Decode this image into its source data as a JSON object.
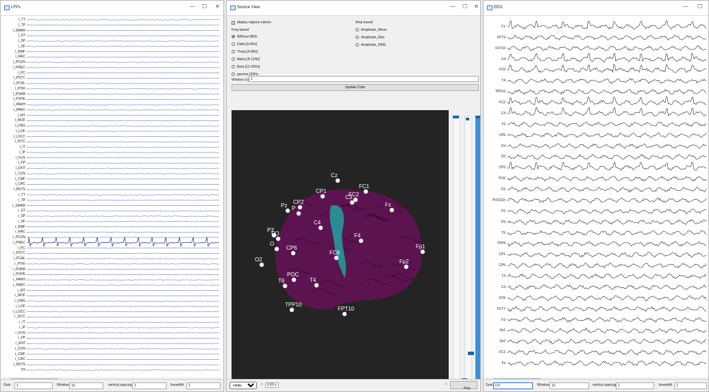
{
  "lfp_window": {
    "title": "LFPs",
    "channels": [
      "l_TT",
      "l_TP",
      "l_SMAR",
      "l_ST",
      "l_SP",
      "l_SF",
      "l_RMF",
      "l_RAC",
      "l_PCUN",
      "l_PREC",
      "l_PC",
      "l_PSTC",
      "l_PCAL",
      "l_PTRI",
      "l_PORB",
      "l_POPE",
      "l_PARH",
      "l_PARC",
      "l_MT",
      "l_MOF",
      "l_LING",
      "l_LOF",
      "l_LOCC",
      "l_ISTC",
      "l_IT",
      "l_IP",
      "l_FUS",
      "l_FP",
      "l_ENT",
      "l_CUN",
      "l_CMF",
      "l_CAC",
      "l_BSTS",
      "r_TT",
      "r_TP",
      "r_SMAR",
      "r_ST",
      "r_SP",
      "r_SF",
      "r_RMF",
      "r_RAC",
      "r_PCUN",
      "r_PREC",
      "r_PC",
      "r_PSTC",
      "r_PCAL",
      "r_PTRI",
      "r_PORB",
      "r_POPE",
      "r_PARH",
      "r_PARC",
      "r_MT",
      "r_MOF",
      "r_LING",
      "r_LOF",
      "r_LOCC",
      "r_ISTC",
      "r_IT",
      "r_IP",
      "r_FUS",
      "r_FP",
      "r_ENT",
      "r_CUN",
      "r_CMF",
      "r_CAC",
      "r_BSTS",
      "TH"
    ],
    "active_channel": "r_PREC",
    "trace_color": "#4a5fa8",
    "active_color": "#2c3e90",
    "controls": {
      "gain_label": "Gain",
      "gain_value": "1",
      "window_label": "Window",
      "window_value": "10",
      "spacing_label": "vertical spacing",
      "spacing_value": "1",
      "linewidth_label": "linewidth",
      "linewidth_value": "1"
    }
  },
  "source_window": {
    "title": "Source View",
    "display_names_label": "display regions names",
    "freq_heading": "Freq based",
    "freq_options": [
      "Without filtHz",
      "Delta [0-4Hz]",
      "Theta [4-8Hz]",
      "Alpha [8-12Hz]",
      "Beta [12-30Hz]",
      "gamma [30Hz"
    ],
    "amp_heading": "Amp based",
    "amp_options": [
      "Amplitude_Mean",
      "Amplitude_Max",
      "Amplitude_RMS"
    ],
    "window_label": "Window (s)",
    "window_value": "1",
    "update_button": "Update Color",
    "brain_color": "#5c1450",
    "highlight_color": "#2a8c92",
    "electrodes": [
      "CP1",
      "Cz",
      "FC1",
      "Pz",
      "CP2",
      "FC2",
      "C3",
      "Fz",
      "P",
      "C4",
      "F4",
      "PO",
      "P3",
      "O",
      "CP6",
      "FC6",
      "Fp1",
      "O2",
      "Fp2",
      "T6",
      "POC",
      "T4",
      "TPP10",
      "FPT10"
    ],
    "colormap_value": "viridis",
    "time_value": "0.00 s",
    "play_label": "Play"
  },
  "eeg_window": {
    "title": "EEG",
    "channels": [
      "Cz",
      "FFT9",
      "FFT10",
      "F4",
      "FC6",
      "T4",
      "TPP10",
      "FC2",
      "C4",
      "T6",
      "CP6",
      "P4",
      "O2",
      "CP2",
      "PO2",
      "O1",
      "POO11h",
      "P2",
      "P3",
      "T5",
      "TPP9",
      "CP1",
      "CP5",
      "T3",
      "C3",
      "FC5",
      "FFT7",
      "F3",
      "Fp1",
      "Fp2",
      "FC1",
      "Fz"
    ],
    "spiky_channels": [
      "Cz",
      "F4",
      "FC6",
      "FC2",
      "C4",
      "CP2"
    ],
    "trace_color": "#111111",
    "controls": {
      "gain_label": "Gain",
      "gain_value": "0.5",
      "window_label": "Window",
      "window_value": "10",
      "spacing_label": "vertical spacing",
      "spacing_value": "1",
      "linewidth_label": "linewidth",
      "linewidth_value": "1"
    }
  }
}
